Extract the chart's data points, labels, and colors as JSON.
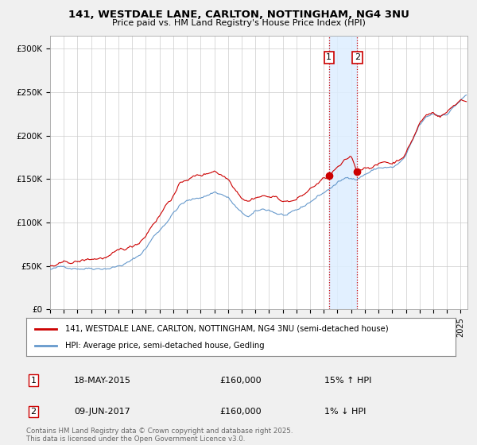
{
  "title_line1": "141, WESTDALE LANE, CARLTON, NOTTINGHAM, NG4 3NU",
  "title_line2": "Price paid vs. HM Land Registry's House Price Index (HPI)",
  "background_color": "#f0f0f0",
  "plot_bg_color": "#ffffff",
  "legend_line1": "141, WESTDALE LANE, CARLTON, NOTTINGHAM, NG4 3NU (semi-detached house)",
  "legend_line2": "HPI: Average price, semi-detached house, Gedling",
  "transaction1_date": "18-MAY-2015",
  "transaction1_price": "£160,000",
  "transaction1_hpi": "15% ↑ HPI",
  "transaction2_date": "09-JUN-2017",
  "transaction2_price": "£160,000",
  "transaction2_hpi": "1% ↓ HPI",
  "copyright_text": "Contains HM Land Registry data © Crown copyright and database right 2025.\nThis data is licensed under the Open Government Licence v3.0.",
  "red_color": "#cc0000",
  "blue_color": "#6699cc",
  "shaded_region_color": "#ddeeff",
  "vline_color": "#cc0000",
  "grid_color": "#cccccc",
  "yticks": [
    0,
    50000,
    100000,
    150000,
    200000,
    250000,
    300000
  ],
  "ytick_labels": [
    "£0",
    "£50K",
    "£100K",
    "£150K",
    "£200K",
    "£250K",
    "£300K"
  ],
  "xlim_start": 1995.0,
  "xlim_end": 2025.5,
  "ylim_min": 0,
  "ylim_max": 315000,
  "transaction1_x": 2015.38,
  "transaction2_x": 2017.44,
  "marker_y1": 160000,
  "marker_y2": 160000
}
